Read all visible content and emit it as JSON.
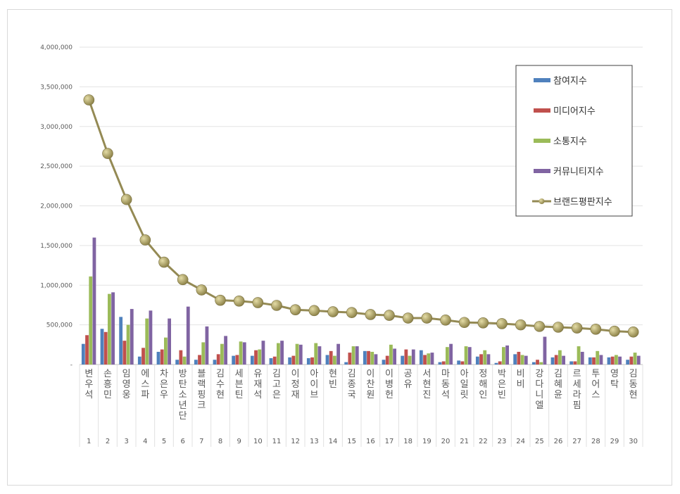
{
  "chart_data": {
    "type": "bar",
    "title": "",
    "xlabel": "",
    "ylabel": "",
    "ylim": [
      0,
      4000000
    ],
    "y_ticks": [
      "-",
      "500,000",
      "1,000,000",
      "1,500,000",
      "2,000,000",
      "2,500,000",
      "3,000,000",
      "3,500,000",
      "4,000,000"
    ],
    "grid": true,
    "legend_position": "top-right",
    "ranks": [
      1,
      2,
      3,
      4,
      5,
      6,
      7,
      8,
      9,
      10,
      11,
      12,
      13,
      14,
      15,
      16,
      17,
      18,
      19,
      20,
      21,
      22,
      23,
      24,
      25,
      26,
      27,
      28,
      29,
      30
    ],
    "categories": [
      "변우석",
      "손흥민",
      "임영웅",
      "에스파",
      "차은우",
      "방탄소년단",
      "블랙핑크",
      "김수현",
      "세븐틴",
      "유재석",
      "김고은",
      "이정재",
      "아이브",
      "현빈",
      "김종국",
      "이찬원",
      "이병헌",
      "공유",
      "서현진",
      "마동석",
      "아일릿",
      "정해인",
      "박은빈",
      "비비",
      "강다니엘",
      "김혜윤",
      "르세라핌",
      "투어스",
      "영탁",
      "김동현"
    ],
    "series": [
      {
        "name": "참여지수",
        "type": "bar",
        "color": "#4f81bd",
        "values": [
          260000,
          450000,
          600000,
          100000,
          160000,
          60000,
          60000,
          60000,
          110000,
          110000,
          80000,
          90000,
          80000,
          120000,
          30000,
          170000,
          60000,
          110000,
          180000,
          30000,
          50000,
          100000,
          20000,
          130000,
          30000,
          90000,
          40000,
          90000,
          90000,
          60000
        ]
      },
      {
        "name": "미디어지수",
        "type": "bar",
        "color": "#c0504d",
        "values": [
          370000,
          410000,
          300000,
          210000,
          190000,
          180000,
          120000,
          130000,
          120000,
          180000,
          100000,
          110000,
          90000,
          170000,
          150000,
          170000,
          110000,
          190000,
          120000,
          40000,
          40000,
          130000,
          40000,
          160000,
          60000,
          120000,
          40000,
          90000,
          100000,
          100000
        ]
      },
      {
        "name": "소통지수",
        "type": "bar",
        "color": "#9bbb59",
        "values": [
          1110000,
          890000,
          500000,
          580000,
          340000,
          100000,
          280000,
          260000,
          290000,
          190000,
          270000,
          260000,
          270000,
          110000,
          230000,
          160000,
          250000,
          110000,
          140000,
          220000,
          230000,
          180000,
          220000,
          120000,
          30000,
          180000,
          230000,
          170000,
          120000,
          150000
        ]
      },
      {
        "name": "커뮤니티지수",
        "type": "bar",
        "color": "#8064a2",
        "values": [
          1600000,
          910000,
          700000,
          680000,
          580000,
          730000,
          480000,
          360000,
          280000,
          300000,
          300000,
          250000,
          230000,
          260000,
          230000,
          130000,
          200000,
          190000,
          150000,
          260000,
          220000,
          130000,
          240000,
          110000,
          350000,
          110000,
          160000,
          120000,
          100000,
          110000
        ]
      },
      {
        "name": "브랜드평판지수",
        "type": "line",
        "color": "#948a54",
        "values": [
          3335000,
          2660000,
          2080000,
          1570000,
          1290000,
          1070000,
          940000,
          810000,
          800000,
          780000,
          745000,
          690000,
          680000,
          665000,
          655000,
          630000,
          620000,
          585000,
          585000,
          560000,
          530000,
          525000,
          515000,
          500000,
          480000,
          470000,
          460000,
          445000,
          420000,
          410000
        ]
      }
    ]
  }
}
